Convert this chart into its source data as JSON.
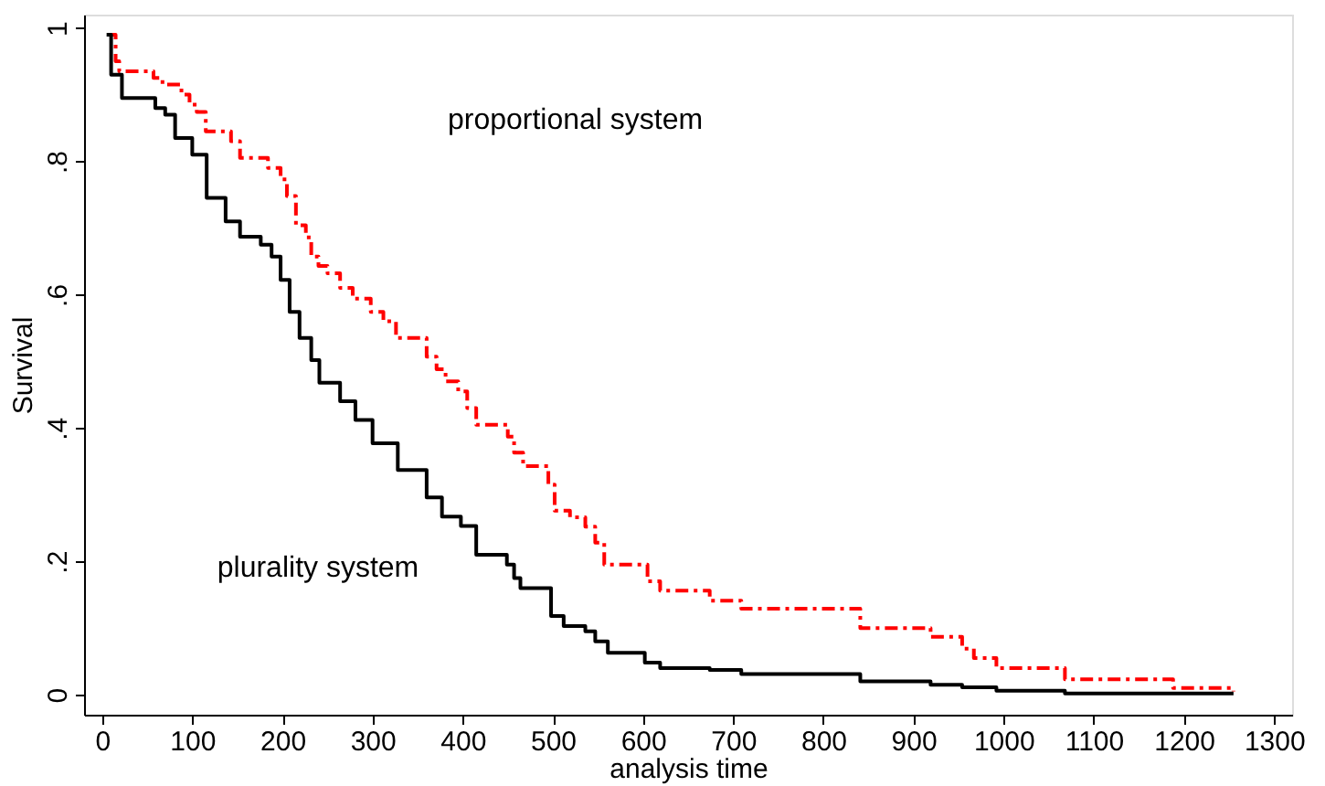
{
  "chart_data": {
    "type": "step",
    "xlabel": "analysis time",
    "ylabel": "Survival",
    "xlim": [
      -20,
      1320
    ],
    "xticks": [
      0,
      100,
      200,
      300,
      400,
      500,
      600,
      700,
      800,
      900,
      1000,
      1100,
      1200,
      1300
    ],
    "ylim": [
      -0.03,
      1.02
    ],
    "yticks": [
      0,
      {
        "value": 0.2,
        "label": ".2"
      },
      {
        "value": 0.4,
        "label": ".4"
      },
      {
        "value": 0.6,
        "label": ".6"
      },
      {
        "value": 0.8,
        "label": ".8"
      },
      1
    ],
    "grid": false,
    "marker": "none",
    "series": [
      {
        "color": "#ff0000",
        "line_style": "dashed",
        "x": [
          6,
          15,
          19,
          57,
          67,
          88,
          97,
          105,
          115,
          143,
          153,
          184,
          198,
          205,
          215,
          226,
          232,
          240,
          250,
          264,
          278,
          298,
          312,
          326,
          360,
          371,
          381,
          395,
          405,
          415,
          450,
          457,
          467,
          495,
          502,
          519,
          536,
          547,
          557,
          605,
          619,
          674,
          709,
          841,
          919,
          954,
          967,
          992,
          1068,
          1188,
          1255
        ],
        "values": [
          0.99,
          0.95,
          0.935,
          0.925,
          0.915,
          0.9,
          0.885,
          0.874,
          0.845,
          0.83,
          0.805,
          0.79,
          0.773,
          0.748,
          0.704,
          0.686,
          0.657,
          0.643,
          0.632,
          0.61,
          0.594,
          0.574,
          0.56,
          0.535,
          0.507,
          0.488,
          0.47,
          0.455,
          0.43,
          0.405,
          0.387,
          0.363,
          0.343,
          0.315,
          0.276,
          0.266,
          0.252,
          0.228,
          0.195,
          0.17,
          0.156,
          0.141,
          0.129,
          0.1,
          0.087,
          0.069,
          0.055,
          0.04,
          0.023,
          0.01,
          0.005
        ]
      },
      {
        "color": "#000000",
        "line_style": "solid",
        "x": [
          5,
          10,
          22,
          59,
          70,
          81,
          100,
          116,
          137,
          153,
          176,
          188,
          198,
          208,
          219,
          232,
          241,
          264,
          281,
          300,
          328,
          360,
          377,
          398,
          415,
          449,
          457,
          464,
          498,
          512,
          536,
          547,
          561,
          602,
          619,
          674,
          709,
          841,
          919,
          954,
          992,
          1068,
          1255
        ],
        "values": [
          0.99,
          0.93,
          0.895,
          0.88,
          0.87,
          0.835,
          0.81,
          0.745,
          0.71,
          0.687,
          0.675,
          0.657,
          0.622,
          0.574,
          0.535,
          0.502,
          0.468,
          0.44,
          0.412,
          0.377,
          0.337,
          0.296,
          0.267,
          0.253,
          0.21,
          0.195,
          0.175,
          0.16,
          0.118,
          0.103,
          0.095,
          0.08,
          0.063,
          0.048,
          0.04,
          0.037,
          0.031,
          0.02,
          0.015,
          0.011,
          0.006,
          0.002,
          0.002
        ]
      }
    ],
    "annotations": [
      "proportional system",
      "plurality system"
    ]
  }
}
